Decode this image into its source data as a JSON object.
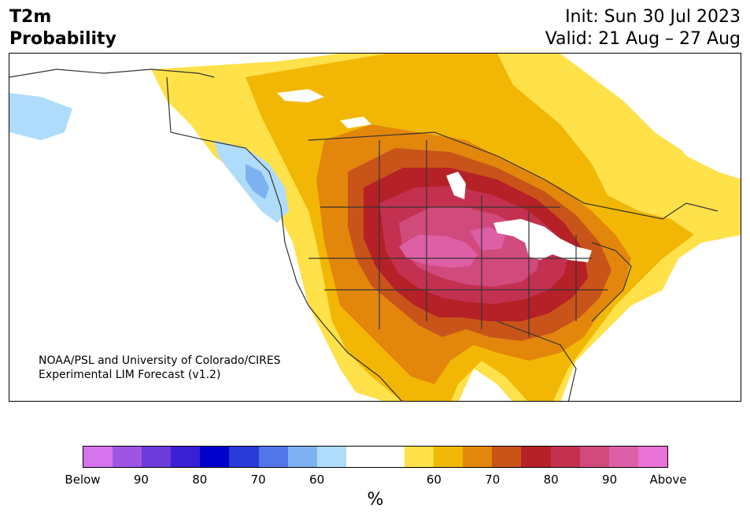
{
  "header": {
    "variable": "T2m",
    "product": "Probability",
    "init": "Init: Sun 30 Jul 2023",
    "valid": "Valid: 21 Aug – 27 Aug"
  },
  "credit": {
    "line1": "NOAA/PSL and University of Colorado/CIRES",
    "line2": "Experimental LIM Forecast (v1.2)"
  },
  "colorbar": {
    "unit": "%",
    "colors": [
      "#d674ec",
      "#9f55e4",
      "#6c3bdc",
      "#3a1fd4",
      "#0000cc",
      "#2a3ad8",
      "#5276e8",
      "#7db2f2",
      "#b0dcfb",
      "#ffffff",
      "#ffffff",
      "#ffe14a",
      "#f2b705",
      "#e2870c",
      "#c95419",
      "#b52126",
      "#c43150",
      "#d04a7c",
      "#dd5fa6",
      "#e872d6"
    ],
    "tick_labels": [
      "Below",
      "90",
      "80",
      "70",
      "60",
      "60",
      "70",
      "80",
      "90",
      "Above"
    ]
  },
  "legend_colors": {
    "above_40_50": "#ffe14a",
    "above_50_60": "#f2b705",
    "above_60_70": "#e2870c",
    "above_70_80": "#c95419",
    "above_80_90": "#b52126",
    "above_90_95": "#c43150",
    "above_95_99": "#d04a7c",
    "above_extreme": "#dd5fa6",
    "below_light": "#b0dcfb",
    "below_mid": "#7db2f2"
  }
}
